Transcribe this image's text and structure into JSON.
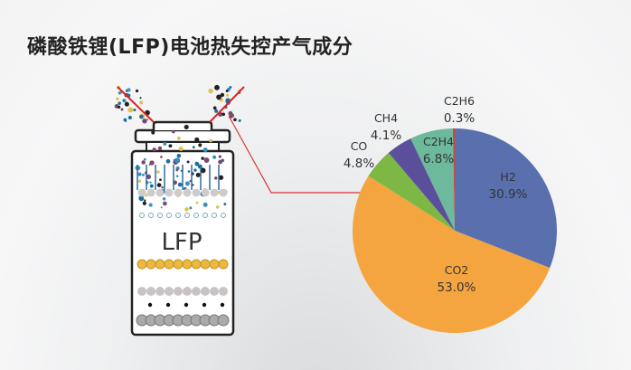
{
  "title": "磷酸铁锂(LFP)电池热失控产气成分",
  "illustration": {
    "label": "LFP"
  },
  "chart_data": {
    "type": "pie",
    "start": "top",
    "direction": "clockwise",
    "slices": [
      {
        "label": "H2",
        "value": 30.9,
        "display": "30.9%",
        "color": "#5a6fae"
      },
      {
        "label": "CO2",
        "value": 53.0,
        "display": "53.0%",
        "color": "#f5a540"
      },
      {
        "label": "CO",
        "value": 4.8,
        "display": "4.8%",
        "color": "#7cb843"
      },
      {
        "label": "CH4",
        "value": 4.1,
        "display": "4.1%",
        "color": "#5b4f9b"
      },
      {
        "label": "C2H4",
        "value": 6.8,
        "display": "6.8%",
        "color": "#6cb99c"
      },
      {
        "label": "C2H6",
        "value": 0.3,
        "display": "0.3%",
        "color": "#d8432e"
      }
    ]
  }
}
